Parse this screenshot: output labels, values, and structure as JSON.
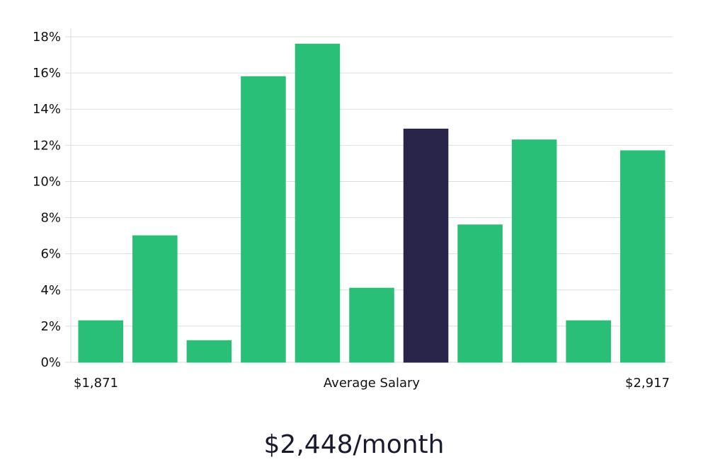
{
  "chart_data": {
    "type": "bar",
    "values": [
      2.3,
      7.0,
      1.2,
      15.8,
      17.6,
      4.1,
      12.9,
      7.6,
      12.3,
      2.3,
      11.7
    ],
    "highlight_index": 6,
    "ylim": [
      0,
      18
    ],
    "yticks": [
      0,
      2,
      4,
      6,
      8,
      10,
      12,
      14,
      16,
      18
    ],
    "ytick_suffix": "%",
    "grid": true,
    "x_min_label": "$1,871",
    "xlabel": "Average Salary",
    "x_max_label": "$2,917",
    "colors": {
      "bar": "#2abf77",
      "highlight": "#28244a",
      "grid": "#dddddd"
    }
  },
  "summary": "$2,448/month"
}
